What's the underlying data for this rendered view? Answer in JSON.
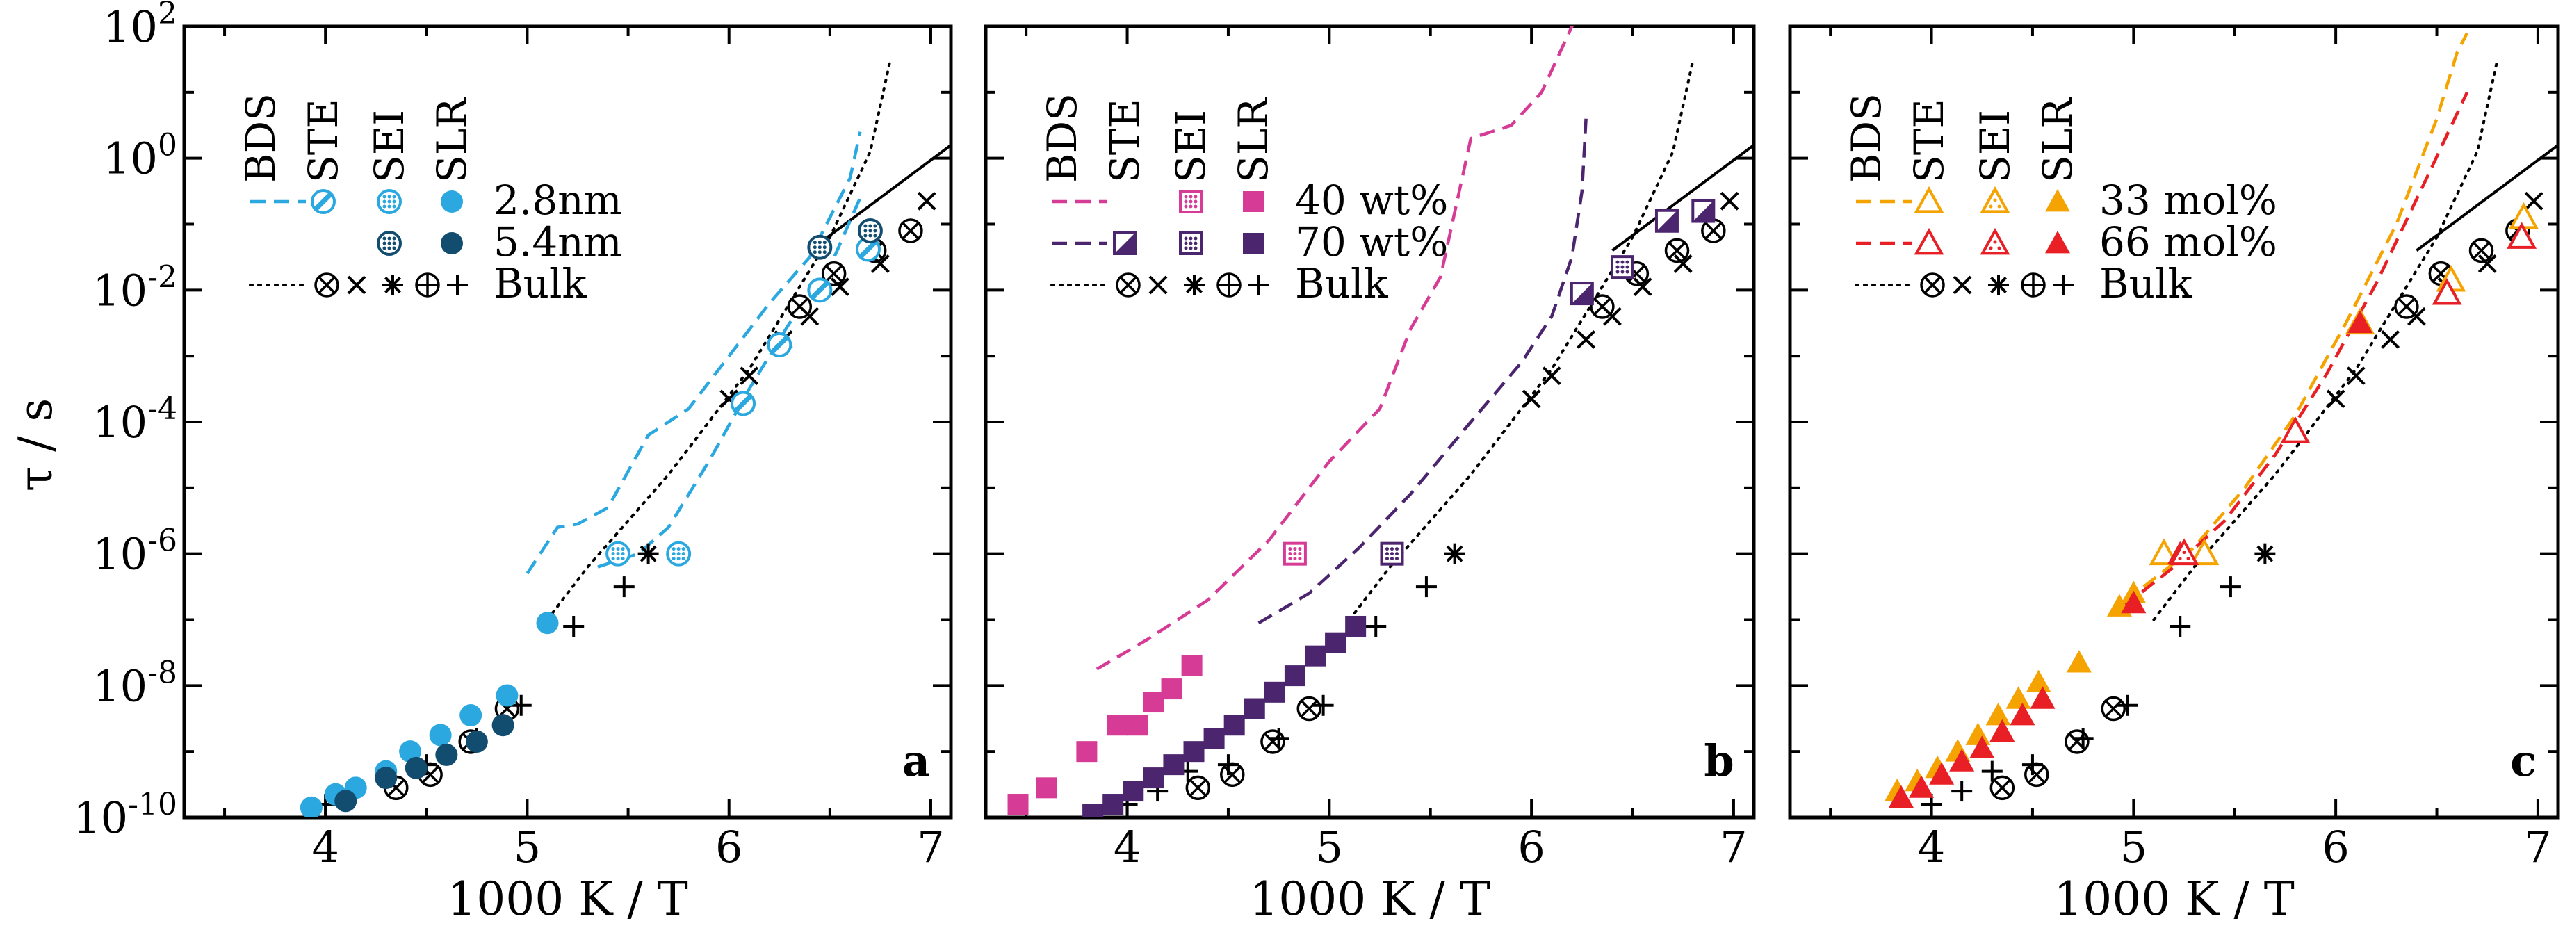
{
  "figure": {
    "ylabel": "τ / s",
    "xlabel": "1000 K / T",
    "x_ticks": [
      "4",
      "5",
      "6",
      "7"
    ],
    "y_ticks": [
      {
        "base": "10",
        "exp": "2"
      },
      {
        "base": "10",
        "exp": "0"
      },
      {
        "base": "10",
        "exp": "-2"
      },
      {
        "base": "10",
        "exp": "-4"
      },
      {
        "base": "10",
        "exp": "-6"
      },
      {
        "base": "10",
        "exp": "-8"
      },
      {
        "base": "10",
        "exp": "-10"
      }
    ]
  },
  "legend_headers": [
    "BDS",
    "STE",
    "SEI",
    "SLR"
  ],
  "bulk_label": "Bulk",
  "colors": {
    "bulk": "#000000",
    "a1": "#2aa8df",
    "a2": "#124d6f",
    "b1": "#d63c96",
    "b2": "#4c256f",
    "c1": "#f5a300",
    "c2": "#e81f25"
  },
  "chart_data": [
    {
      "panel": "a",
      "type": "scatter",
      "xlabel": "1000 K / T",
      "ylabel": "τ / s",
      "xlim": [
        3.3,
        7.1
      ],
      "ylim_log10": [
        -10,
        2
      ],
      "y_scale": "log",
      "series": [
        {
          "name": "2.8nm",
          "color": "#2aa8df",
          "bds_upper": [
            [
              5.0,
              -6.3
            ],
            [
              5.15,
              -5.6
            ],
            [
              5.25,
              -5.55
            ],
            [
              5.4,
              -5.3
            ],
            [
              5.6,
              -4.2
            ],
            [
              5.8,
              -3.8
            ],
            [
              6.0,
              -3.0
            ],
            [
              6.2,
              -2.2
            ],
            [
              6.4,
              -1.5
            ],
            [
              6.6,
              -0.3
            ],
            [
              6.65,
              0.4
            ]
          ],
          "bds_lower": [
            [
              5.35,
              -6.2
            ],
            [
              5.55,
              -6.0
            ],
            [
              5.7,
              -5.6
            ],
            [
              5.9,
              -4.6
            ],
            [
              6.1,
              -3.5
            ],
            [
              6.3,
              -2.5
            ],
            [
              6.45,
              -2.0
            ],
            [
              6.55,
              -1.3
            ],
            [
              6.65,
              -0.6
            ]
          ],
          "ste": [
            [
              6.07,
              -3.72
            ],
            [
              6.25,
              -2.83
            ],
            [
              6.45,
              -2.0
            ],
            [
              6.69,
              -1.38
            ]
          ],
          "sei": [
            [
              5.45,
              -6.0
            ],
            [
              5.75,
              -6.0
            ]
          ],
          "slr": [
            [
              3.93,
              -9.85
            ],
            [
              4.05,
              -9.65
            ],
            [
              4.15,
              -9.55
            ],
            [
              4.3,
              -9.3
            ],
            [
              4.42,
              -9.0
            ],
            [
              4.57,
              -8.75
            ],
            [
              4.72,
              -8.45
            ],
            [
              4.9,
              -8.15
            ],
            [
              5.1,
              -7.05
            ]
          ]
        },
        {
          "name": "5.4nm",
          "color": "#124d6f",
          "bds_upper": [],
          "bds_lower": [],
          "ste": [],
          "sei": [
            [
              6.45,
              -1.35
            ],
            [
              6.7,
              -1.1
            ]
          ],
          "slr": [
            [
              4.1,
              -9.75
            ],
            [
              4.3,
              -9.4
            ],
            [
              4.45,
              -9.25
            ],
            [
              4.6,
              -9.05
            ],
            [
              4.75,
              -8.85
            ],
            [
              4.88,
              -8.6
            ]
          ]
        }
      ],
      "bulk": {
        "bds_line": [
          [
            5.1,
            -7.0
          ],
          [
            5.3,
            -6.2
          ],
          [
            5.5,
            -5.5
          ],
          [
            5.7,
            -4.8
          ],
          [
            5.9,
            -4.0
          ],
          [
            6.1,
            -3.2
          ],
          [
            6.3,
            -2.2
          ],
          [
            6.5,
            -1.2
          ],
          [
            6.7,
            0.1
          ],
          [
            6.8,
            1.5
          ]
        ],
        "slr_solid_line": [
          [
            6.4,
            -1.4
          ],
          [
            7.1,
            0.2
          ]
        ],
        "otimes": [
          [
            4.35,
            -9.55
          ],
          [
            4.52,
            -9.35
          ],
          [
            4.72,
            -8.85
          ],
          [
            4.9,
            -8.35
          ],
          [
            6.35,
            -2.25
          ],
          [
            6.52,
            -1.75
          ],
          [
            6.72,
            -1.4
          ],
          [
            6.9,
            -1.1
          ]
        ],
        "x": [
          [
            6.0,
            -3.65
          ],
          [
            6.1,
            -3.3
          ],
          [
            6.27,
            -2.75
          ],
          [
            6.4,
            -2.4
          ],
          [
            6.55,
            -1.95
          ],
          [
            6.75,
            -1.6
          ],
          [
            6.98,
            -0.65
          ]
        ],
        "star": [
          [
            5.6,
            -6.0
          ]
        ],
        "plus": [
          [
            4.0,
            -9.8
          ],
          [
            4.15,
            -9.6
          ],
          [
            4.3,
            -9.3
          ],
          [
            4.5,
            -9.2
          ],
          [
            4.75,
            -8.8
          ],
          [
            4.97,
            -8.3
          ],
          [
            5.23,
            -7.1
          ],
          [
            5.48,
            -6.5
          ]
        ]
      },
      "legend": {
        "series_labels": [
          "2.8nm",
          "5.4nm"
        ]
      }
    },
    {
      "panel": "b",
      "type": "scatter",
      "xlabel": "1000 K / T",
      "ylabel": "",
      "xlim": [
        3.3,
        7.1
      ],
      "ylim_log10": [
        -10,
        2
      ],
      "y_scale": "log",
      "series": [
        {
          "name": "40 wt%",
          "color": "#d63c96",
          "bds_line": [
            [
              3.85,
              -7.75
            ],
            [
              4.1,
              -7.3
            ],
            [
              4.4,
              -6.7
            ],
            [
              4.7,
              -5.8
            ],
            [
              5.0,
              -4.6
            ],
            [
              5.25,
              -3.8
            ],
            [
              5.4,
              -2.6
            ],
            [
              5.55,
              -1.8
            ],
            [
              5.7,
              0.3
            ],
            [
              5.9,
              0.5
            ],
            [
              6.05,
              1.0
            ],
            [
              6.2,
              2.0
            ],
            [
              6.25,
              2.2
            ]
          ],
          "ste": [],
          "sei": [
            [
              4.83,
              -6.0
            ]
          ],
          "slr": [
            [
              3.46,
              -9.8
            ],
            [
              3.6,
              -9.55
            ],
            [
              3.8,
              -9.0
            ],
            [
              3.95,
              -8.6
            ],
            [
              4.05,
              -8.6
            ],
            [
              4.13,
              -8.25
            ],
            [
              4.22,
              -8.05
            ],
            [
              4.32,
              -7.7
            ]
          ]
        },
        {
          "name": "70 wt%",
          "color": "#4c256f",
          "bds_line": [
            [
              4.65,
              -7.05
            ],
            [
              4.9,
              -6.6
            ],
            [
              5.15,
              -5.9
            ],
            [
              5.4,
              -5.1
            ],
            [
              5.7,
              -4.0
            ],
            [
              5.95,
              -3.1
            ],
            [
              6.1,
              -2.4
            ],
            [
              6.2,
              -1.5
            ],
            [
              6.25,
              -0.5
            ],
            [
              6.27,
              0.6
            ]
          ],
          "ste": [
            [
              6.25,
              -2.05
            ],
            [
              6.67,
              -0.95
            ],
            [
              6.85,
              -0.8
            ]
          ],
          "sei": [
            [
              5.31,
              -6.0
            ],
            [
              6.45,
              -1.65
            ]
          ],
          "slr": [
            [
              3.83,
              -9.95
            ],
            [
              3.93,
              -9.8
            ],
            [
              4.03,
              -9.6
            ],
            [
              4.13,
              -9.4
            ],
            [
              4.23,
              -9.2
            ],
            [
              4.33,
              -9.0
            ],
            [
              4.43,
              -8.8
            ],
            [
              4.53,
              -8.6
            ],
            [
              4.63,
              -8.35
            ],
            [
              4.73,
              -8.1
            ],
            [
              4.83,
              -7.85
            ],
            [
              4.93,
              -7.55
            ],
            [
              5.03,
              -7.35
            ],
            [
              5.13,
              -7.1
            ]
          ]
        }
      ],
      "bulk": {
        "bds_line": [
          [
            5.1,
            -7.0
          ],
          [
            5.3,
            -6.2
          ],
          [
            5.5,
            -5.5
          ],
          [
            5.7,
            -4.8
          ],
          [
            5.9,
            -4.0
          ],
          [
            6.1,
            -3.2
          ],
          [
            6.3,
            -2.2
          ],
          [
            6.5,
            -1.2
          ],
          [
            6.7,
            0.1
          ],
          [
            6.8,
            1.5
          ]
        ],
        "slr_solid_line": [
          [
            6.4,
            -1.4
          ],
          [
            7.1,
            0.2
          ]
        ],
        "otimes": [
          [
            4.35,
            -9.55
          ],
          [
            4.52,
            -9.35
          ],
          [
            4.72,
            -8.85
          ],
          [
            4.9,
            -8.35
          ],
          [
            6.35,
            -2.25
          ],
          [
            6.52,
            -1.75
          ],
          [
            6.72,
            -1.4
          ],
          [
            6.9,
            -1.1
          ]
        ],
        "x": [
          [
            6.0,
            -3.65
          ],
          [
            6.1,
            -3.3
          ],
          [
            6.27,
            -2.75
          ],
          [
            6.4,
            -2.4
          ],
          [
            6.55,
            -1.95
          ],
          [
            6.75,
            -1.6
          ],
          [
            6.98,
            -0.65
          ]
        ],
        "star": [
          [
            5.62,
            -6.0
          ]
        ],
        "plus": [
          [
            4.0,
            -9.8
          ],
          [
            4.15,
            -9.6
          ],
          [
            4.3,
            -9.3
          ],
          [
            4.5,
            -9.2
          ],
          [
            4.75,
            -8.8
          ],
          [
            4.97,
            -8.3
          ],
          [
            5.23,
            -7.1
          ],
          [
            5.48,
            -6.5
          ]
        ]
      },
      "legend": {
        "series_labels": [
          "40 wt%",
          "70 wt%"
        ]
      }
    },
    {
      "panel": "c",
      "type": "scatter",
      "xlabel": "1000 K / T",
      "ylabel": "",
      "xlim": [
        3.3,
        7.1
      ],
      "ylim_log10": [
        -10,
        2
      ],
      "y_scale": "log",
      "series": [
        {
          "name": "33 mol%",
          "color": "#f5a300",
          "bds_line": [
            [
              5.05,
              -6.5
            ],
            [
              5.3,
              -5.9
            ],
            [
              5.55,
              -5.0
            ],
            [
              5.8,
              -3.9
            ],
            [
              6.05,
              -2.5
            ],
            [
              6.3,
              -1.0
            ],
            [
              6.5,
              0.6
            ],
            [
              6.6,
              1.6
            ],
            [
              6.65,
              1.9
            ]
          ],
          "ste": [
            [
              5.15,
              -6.0
            ],
            [
              5.35,
              -6.0
            ],
            [
              6.12,
              -2.5
            ],
            [
              6.57,
              -1.85
            ],
            [
              6.93,
              -0.9
            ]
          ],
          "sei": [],
          "slr": [
            [
              3.83,
              -9.6
            ],
            [
              3.93,
              -9.45
            ],
            [
              4.03,
              -9.25
            ],
            [
              4.13,
              -9.0
            ],
            [
              4.23,
              -8.75
            ],
            [
              4.33,
              -8.45
            ],
            [
              4.43,
              -8.2
            ],
            [
              4.53,
              -7.95
            ],
            [
              4.73,
              -7.65
            ],
            [
              4.93,
              -6.8
            ],
            [
              5.0,
              -6.6
            ]
          ]
        },
        {
          "name": "66 mol%",
          "color": "#e81f25",
          "bds_line": [
            [
              4.95,
              -6.8
            ],
            [
              5.2,
              -6.2
            ],
            [
              5.45,
              -5.5
            ],
            [
              5.7,
              -4.5
            ],
            [
              5.95,
              -3.3
            ],
            [
              6.2,
              -1.9
            ],
            [
              6.45,
              -0.3
            ],
            [
              6.65,
              1.0
            ]
          ],
          "ste": [
            [
              5.8,
              -4.15
            ],
            [
              6.55,
              -2.05
            ],
            [
              6.92,
              -1.2
            ]
          ],
          "sei": [
            [
              5.25,
              -6.0
            ]
          ],
          "slr": [
            [
              3.85,
              -9.7
            ],
            [
              3.95,
              -9.55
            ],
            [
              4.05,
              -9.35
            ],
            [
              4.15,
              -9.15
            ],
            [
              4.25,
              -8.95
            ],
            [
              4.35,
              -8.7
            ],
            [
              4.45,
              -8.45
            ],
            [
              4.55,
              -8.2
            ],
            [
              5.0,
              -6.75
            ],
            [
              5.23,
              -6.0
            ],
            [
              6.12,
              -2.5
            ]
          ]
        }
      ],
      "bulk": {
        "bds_line": [
          [
            5.1,
            -7.0
          ],
          [
            5.3,
            -6.2
          ],
          [
            5.5,
            -5.5
          ],
          [
            5.7,
            -4.8
          ],
          [
            5.9,
            -4.0
          ],
          [
            6.1,
            -3.2
          ],
          [
            6.3,
            -2.2
          ],
          [
            6.5,
            -1.2
          ],
          [
            6.7,
            0.1
          ],
          [
            6.8,
            1.5
          ]
        ],
        "slr_solid_line": [
          [
            6.4,
            -1.4
          ],
          [
            7.1,
            0.2
          ]
        ],
        "otimes": [
          [
            4.35,
            -9.55
          ],
          [
            4.52,
            -9.35
          ],
          [
            4.72,
            -8.85
          ],
          [
            4.9,
            -8.35
          ],
          [
            6.35,
            -2.25
          ],
          [
            6.52,
            -1.75
          ],
          [
            6.72,
            -1.4
          ],
          [
            6.9,
            -1.1
          ]
        ],
        "x": [
          [
            6.0,
            -3.65
          ],
          [
            6.1,
            -3.3
          ],
          [
            6.27,
            -2.75
          ],
          [
            6.4,
            -2.4
          ],
          [
            6.55,
            -1.95
          ],
          [
            6.75,
            -1.6
          ],
          [
            6.98,
            -0.65
          ]
        ],
        "star": [
          [
            5.65,
            -6.0
          ]
        ],
        "plus": [
          [
            4.0,
            -9.8
          ],
          [
            4.15,
            -9.6
          ],
          [
            4.3,
            -9.3
          ],
          [
            4.5,
            -9.2
          ],
          [
            4.75,
            -8.8
          ],
          [
            4.97,
            -8.3
          ],
          [
            5.23,
            -7.1
          ],
          [
            5.48,
            -6.5
          ]
        ]
      },
      "legend": {
        "series_labels": [
          "33 mol%",
          "66 mol%"
        ]
      }
    }
  ]
}
